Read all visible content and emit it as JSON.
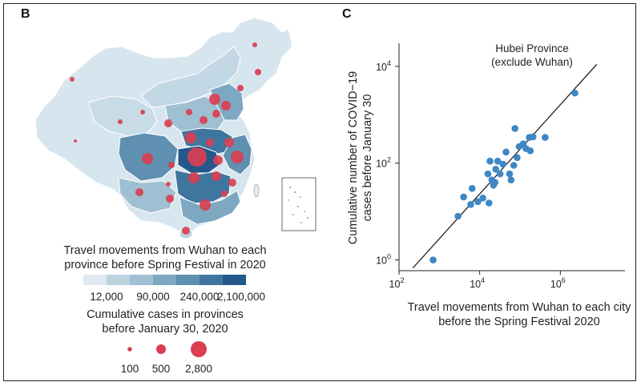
{
  "panels": {
    "map": {
      "label": "B"
    },
    "scatter": {
      "label": "C"
    }
  },
  "map_legend": {
    "travel_title_line1": "Travel movements from Wuhan to each",
    "travel_title_line2": "province before Spring Festival in 2020",
    "travel_ticks": [
      "12,000",
      "90,000",
      "240,000",
      "2,100,000"
    ],
    "travel_colors": [
      "#dde9ef",
      "#bcd3e0",
      "#9fbfd2",
      "#7ea8c2",
      "#5f8fb1",
      "#3f76a0",
      "#24588a"
    ],
    "cases_title_line1": "Cumulative cases in provinces",
    "cases_title_line2": "before January 30, 2020",
    "cases_sizes": [
      "100",
      "500",
      "2,800"
    ],
    "bubble_color": "#d93f51"
  },
  "chart_data": [
    {
      "type": "map",
      "panel": "B",
      "legend_title": "Travel movements from Wuhan to each province before Spring Festival in 2020",
      "color_scale_ticks": [
        12000,
        90000,
        240000,
        2100000
      ],
      "size_legend_title": "Cumulative cases in provinces before January 30, 2020",
      "size_legend_values": [
        100,
        500,
        2800
      ]
    },
    {
      "type": "scatter",
      "panel": "C",
      "annotation_line1": "Hubei Province",
      "annotation_line2": "(exclude Wuhan)",
      "xlabel_line1": "Travel movements from Wuhan to each city",
      "xlabel_line2": "before the Spring Festival 2020",
      "ylabel_line1": "Cumulative number of COVID−19",
      "ylabel_line2": "cases before January 30",
      "x_scale": "log",
      "y_scale": "log",
      "xlim": [
        100,
        40000000
      ],
      "ylim": [
        0.6,
        30000
      ],
      "x_ticks": [
        100,
        10000,
        1000000
      ],
      "x_tick_labels": [
        [
          "10",
          "2"
        ],
        [
          "10",
          "4"
        ],
        [
          "10",
          "6"
        ]
      ],
      "y_ticks": [
        1,
        100,
        10000
      ],
      "y_tick_labels": [
        [
          "10",
          "0"
        ],
        [
          "10",
          "2"
        ],
        [
          "10",
          "4"
        ]
      ],
      "point_color": "#3d87c4",
      "fit_line": {
        "x": [
          220,
          8000000
        ],
        "y": [
          0.68,
          11000
        ]
      },
      "points": [
        {
          "x": 700,
          "y": 1
        },
        {
          "x": 2900,
          "y": 8
        },
        {
          "x": 4000,
          "y": 20
        },
        {
          "x": 6000,
          "y": 14
        },
        {
          "x": 6500,
          "y": 30
        },
        {
          "x": 9000,
          "y": 16
        },
        {
          "x": 12000,
          "y": 19
        },
        {
          "x": 17000,
          "y": 15
        },
        {
          "x": 16000,
          "y": 60
        },
        {
          "x": 18000,
          "y": 110
        },
        {
          "x": 20000,
          "y": 45
        },
        {
          "x": 22000,
          "y": 35
        },
        {
          "x": 24000,
          "y": 40
        },
        {
          "x": 25000,
          "y": 75
        },
        {
          "x": 28000,
          "y": 110
        },
        {
          "x": 32000,
          "y": 60
        },
        {
          "x": 38000,
          "y": 95
        },
        {
          "x": 45000,
          "y": 170
        },
        {
          "x": 55000,
          "y": 60
        },
        {
          "x": 60000,
          "y": 45
        },
        {
          "x": 70000,
          "y": 90
        },
        {
          "x": 75000,
          "y": 520
        },
        {
          "x": 85000,
          "y": 130
        },
        {
          "x": 95000,
          "y": 220
        },
        {
          "x": 120000,
          "y": 250
        },
        {
          "x": 140000,
          "y": 200
        },
        {
          "x": 170000,
          "y": 340
        },
        {
          "x": 210000,
          "y": 350
        },
        {
          "x": 180000,
          "y": 180
        },
        {
          "x": 420000,
          "y": 340
        },
        {
          "x": 2300000,
          "y": 2800
        }
      ]
    }
  ]
}
